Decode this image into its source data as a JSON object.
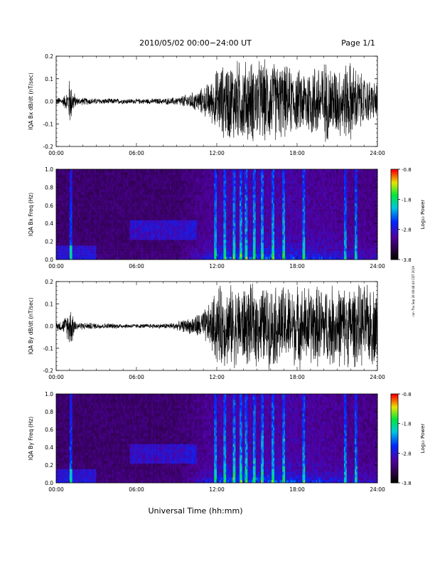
{
  "header": {
    "date_range": "2010/05/02  00:00−24:00 UT",
    "page_label": "Page 1/1"
  },
  "footer": {
    "xaxis_title": "Universal Time (hh:mm)"
  },
  "side_note": "run Thu Sep 26 08:48:43 CDT 2019",
  "colorbar": {
    "title": "Log₁₀ Power",
    "ticks": [
      "-0.8",
      "-1.8",
      "-2.8",
      "-3.8"
    ]
  },
  "time_ticks": [
    "00:00",
    "06:00",
    "12:00",
    "18:00",
    "24:00"
  ],
  "chart_data": [
    {
      "type": "line",
      "ylabel": "IQA Bx dB/dt (nT/sec)",
      "xlim": [
        0,
        24
      ],
      "ylim": [
        -0.2,
        0.2
      ],
      "yticks": [
        "-0.2",
        "-0.1",
        "0.0",
        "0.1",
        "0.2"
      ],
      "x_ticks": [
        "00:00",
        "06:00",
        "12:00",
        "18:00",
        "24:00"
      ],
      "envelope": {
        "hours": [
          0,
          0.5,
          0.9,
          1.0,
          1.2,
          1.5,
          3,
          6,
          8,
          9,
          10,
          10.5,
          11,
          11.5,
          11.8,
          12,
          13,
          14,
          15,
          16,
          17,
          18,
          19,
          20,
          21,
          22,
          23,
          24
        ],
        "amplitude": [
          0.02,
          0.02,
          0.06,
          0.13,
          0.07,
          0.02,
          0.015,
          0.012,
          0.015,
          0.02,
          0.04,
          0.05,
          0.07,
          0.1,
          0.12,
          0.16,
          0.2,
          0.2,
          0.2,
          0.2,
          0.18,
          0.15,
          0.18,
          0.2,
          0.17,
          0.2,
          0.12,
          0.09
        ]
      }
    },
    {
      "type": "heatmap",
      "ylabel": "IQA Bx Freq (Hz)",
      "xlim": [
        0,
        24
      ],
      "ylim": [
        0,
        1
      ],
      "yticks": [
        "0.0",
        "0.2",
        "0.4",
        "0.6",
        "0.8",
        "1.0"
      ],
      "x_ticks": [
        "00:00",
        "06:00",
        "12:00",
        "18:00",
        "24:00"
      ],
      "colorbar_range": [
        -3.8,
        -0.8
      ],
      "bursts_hours": [
        1.1,
        11.9,
        12.6,
        13.3,
        13.8,
        14.2,
        14.8,
        15.4,
        16.2,
        17.0,
        18.5,
        21.6,
        22.4
      ]
    },
    {
      "type": "line",
      "ylabel": "IQA By dB/dt (nT/sec)",
      "xlim": [
        0,
        24
      ],
      "ylim": [
        -0.2,
        0.2
      ],
      "yticks": [
        "-0.2",
        "-0.1",
        "0.0",
        "0.1",
        "0.2"
      ],
      "x_ticks": [
        "00:00",
        "06:00",
        "12:00",
        "18:00",
        "24:00"
      ],
      "envelope": {
        "hours": [
          0,
          0.5,
          0.9,
          1.0,
          1.2,
          1.5,
          3,
          6,
          8,
          9,
          10,
          10.5,
          11,
          11.5,
          11.8,
          12,
          13,
          14,
          15,
          16,
          17,
          18,
          19,
          20,
          21,
          22,
          23,
          24
        ],
        "amplitude": [
          0.02,
          0.03,
          0.07,
          0.11,
          0.08,
          0.02,
          0.015,
          0.01,
          0.012,
          0.02,
          0.04,
          0.06,
          0.08,
          0.11,
          0.16,
          0.2,
          0.2,
          0.2,
          0.2,
          0.2,
          0.2,
          0.2,
          0.2,
          0.2,
          0.2,
          0.2,
          0.2,
          0.19
        ]
      }
    },
    {
      "type": "heatmap",
      "ylabel": "IQA By Freq (Hz)",
      "xlim": [
        0,
        24
      ],
      "ylim": [
        0,
        1
      ],
      "yticks": [
        "0.0",
        "0.2",
        "0.4",
        "0.6",
        "0.8",
        "1.0"
      ],
      "x_ticks": [
        "00:00",
        "06:00",
        "12:00",
        "18:00",
        "24:00"
      ],
      "colorbar_range": [
        -3.8,
        -0.8
      ],
      "bursts_hours": [
        1.1,
        11.9,
        12.6,
        13.3,
        13.8,
        14.2,
        14.8,
        15.4,
        16.2,
        17.0,
        18.5,
        21.6,
        22.4
      ]
    }
  ]
}
